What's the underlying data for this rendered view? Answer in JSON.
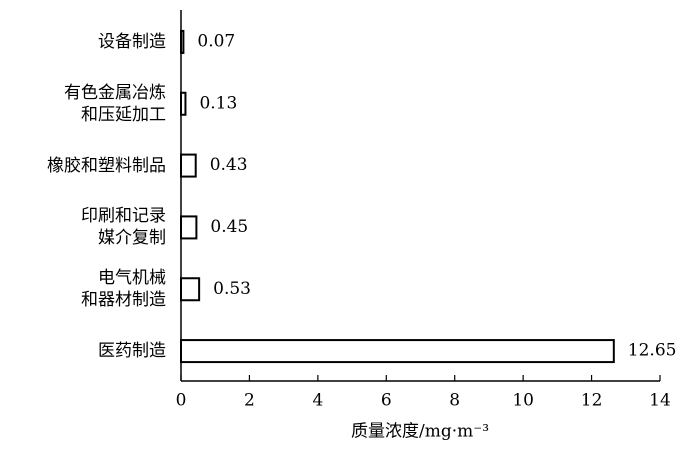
{
  "chart_data": {
    "type": "bar",
    "orientation": "horizontal",
    "x_label": "质量浓度/mg·m⁻³",
    "categories": [
      "设备制造",
      "有色金属冶炼\n和压延加工",
      "橡胶和塑料制品",
      "印刷和记录\n媒介复制",
      "电气机械\n和器材制造",
      "医药制造"
    ],
    "values": [
      0.07,
      0.13,
      0.43,
      0.45,
      0.53,
      12.65
    ],
    "color": "#ffffff",
    "xlim": [
      0,
      14
    ],
    "xticks": [
      0,
      2,
      4,
      6,
      8,
      10,
      12,
      14
    ],
    "grid": false
  }
}
